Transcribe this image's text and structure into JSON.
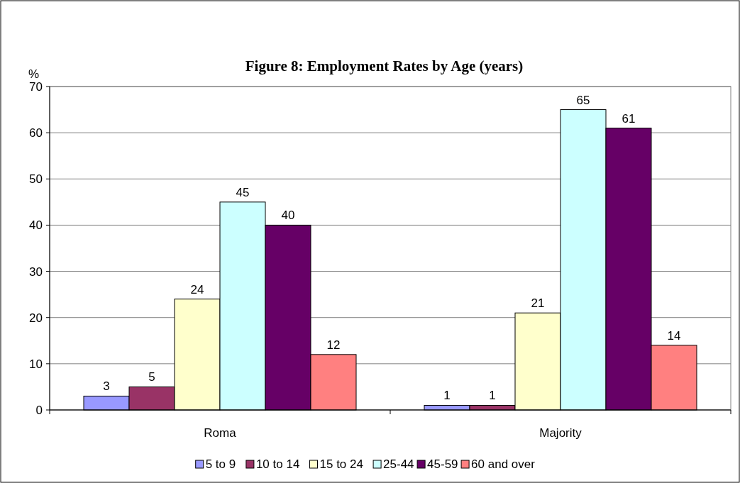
{
  "chart_data": {
    "type": "bar",
    "title": "Figure 8: Employment Rates by Age (years)",
    "ylabel": "%",
    "categories": [
      "Roma",
      "Majority"
    ],
    "series": [
      {
        "name": "5 to 9",
        "color": "#9999ff",
        "values": [
          3,
          1
        ]
      },
      {
        "name": "10 to 14",
        "color": "#993366",
        "values": [
          5,
          1
        ]
      },
      {
        "name": "15 to 24",
        "color": "#ffffcc",
        "values": [
          24,
          21
        ]
      },
      {
        "name": "25-44",
        "color": "#ccffff",
        "values": [
          45,
          65
        ]
      },
      {
        "name": "45-59",
        "color": "#660066",
        "values": [
          40,
          61
        ]
      },
      {
        "name": "60 and over",
        "color": "#ff8080",
        "values": [
          12,
          14
        ]
      }
    ],
    "ylim": [
      0,
      70
    ],
    "yticks": [
      0,
      10,
      20,
      30,
      40,
      50,
      60,
      70
    ],
    "grid": "y",
    "legend": "bottom",
    "data_labels": true
  }
}
